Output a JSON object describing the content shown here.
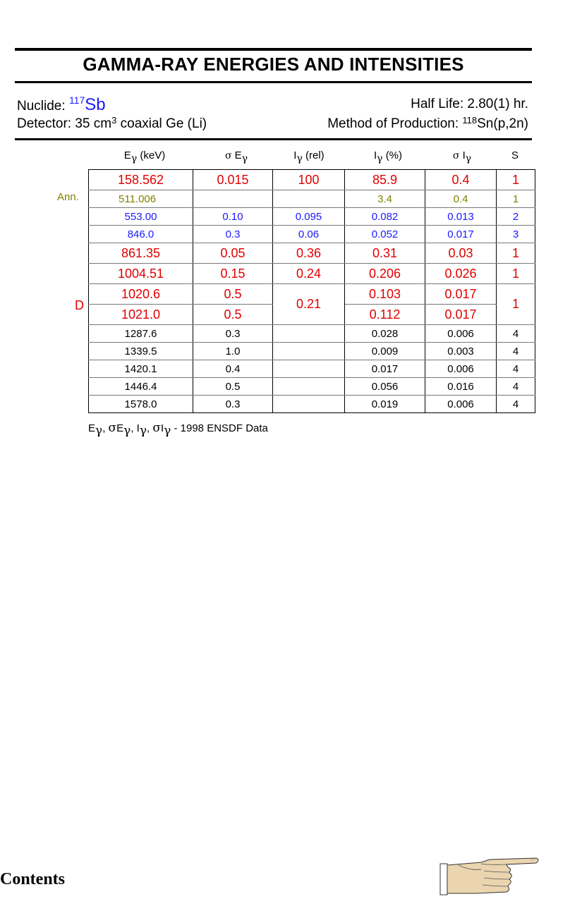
{
  "title": "GAMMA-RAY ENERGIES AND INTENSITIES",
  "nuclide": {
    "label": "Nuclide:",
    "mass": "117",
    "symbol": "Sb"
  },
  "half_life": "Half Life: 2.80(1) hr.",
  "detector": {
    "prefix": "Detector: 35 cm",
    "exp": "3",
    "suffix": " coaxial Ge (Li)"
  },
  "production": {
    "prefix": "Method of Production: ",
    "mass": "118",
    "suffix": "Sn(p,2n)"
  },
  "columns": {
    "energy": {
      "sym": "E",
      "sub": "γ",
      "unit": "(keV)"
    },
    "sigma_e": {
      "sigma": "σ",
      "sym": " E",
      "sub": "γ"
    },
    "i_rel": {
      "sym": "I",
      "sub": "γ",
      "unit": "(rel)"
    },
    "i_pct": {
      "sym": "I",
      "sub": "γ",
      "unit": "(%)"
    },
    "sigma_i": {
      "sigma": "σ",
      "sym": " I",
      "sub": "γ"
    },
    "s": "S"
  },
  "side_labels": {
    "ann": "Ann.",
    "d": "D"
  },
  "rows": [
    {
      "e": "158.562",
      "se": "0.015",
      "irel": "100",
      "ipct": "85.9",
      "si": "0.4",
      "s": "1"
    },
    {
      "e": "511.006",
      "se": "",
      "irel": "",
      "ipct": "3.4",
      "si": "0.4",
      "s": "1"
    },
    {
      "e": "553.00",
      "se": "0.10",
      "irel": "0.095",
      "ipct": "0.082",
      "si": "0.013",
      "s": "2"
    },
    {
      "e": "846.0",
      "se": "0.3",
      "irel": "0.06",
      "ipct": "0.052",
      "si": "0.017",
      "s": "3"
    },
    {
      "e": "861.35",
      "se": "0.05",
      "irel": "0.36",
      "ipct": "0.31",
      "si": "0.03",
      "s": "1"
    },
    {
      "e": "1004.51",
      "se": "0.15",
      "irel": "0.24",
      "ipct": "0.206",
      "si": "0.026",
      "s": "1"
    },
    {
      "e": "1020.6",
      "se": "0.5",
      "irel": "0.21",
      "ipct": "0.103",
      "si": "0.017",
      "s": "1"
    },
    {
      "e": "1021.0",
      "se": "0.5",
      "ipct": "0.112",
      "si": "0.017"
    },
    {
      "e": "1287.6",
      "se": "0.3",
      "irel": "",
      "ipct": "0.028",
      "si": "0.006",
      "s": "4"
    },
    {
      "e": "1339.5",
      "se": "1.0",
      "irel": "",
      "ipct": "0.009",
      "si": "0.003",
      "s": "4"
    },
    {
      "e": "1420.1",
      "se": "0.4",
      "irel": "",
      "ipct": "0.017",
      "si": "0.006",
      "s": "4"
    },
    {
      "e": "1446.4",
      "se": "0.5",
      "irel": "",
      "ipct": "0.056",
      "si": "0.016",
      "s": "4"
    },
    {
      "e": "1578.0",
      "se": "0.3",
      "irel": "",
      "ipct": "0.019",
      "si": "0.006",
      "s": "4"
    }
  ],
  "footer": {
    "e": "E",
    "sigma": "σ",
    "i": "I",
    "g": "γ",
    "sep": ",",
    "dash": " - ",
    "source": "1998 ENSDF Data"
  },
  "contents_link": "Contents",
  "icons": {
    "next": "pointing-hand-icon"
  },
  "colors": {
    "red": "#e00000",
    "olive": "#808000",
    "blue": "#1a1aff"
  }
}
